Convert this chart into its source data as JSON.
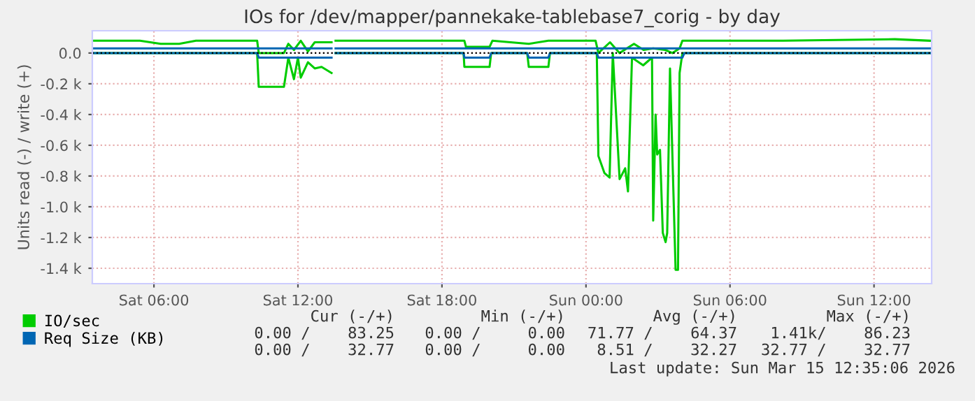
{
  "chart_data": {
    "type": "line",
    "title": "IOs for /dev/mapper/pannekake-tablebase7_corig - by day",
    "ylabel": "Units read (-) / write (+)",
    "xlim": [
      "2026-03-14T03:26",
      "2026-03-15T14:24"
    ],
    "xticks": [
      {
        "value": "2026-03-14T06:00",
        "label": "Sat 06:00"
      },
      {
        "value": "2026-03-14T12:00",
        "label": "Sat 12:00"
      },
      {
        "value": "2026-03-14T18:00",
        "label": "Sat 18:00"
      },
      {
        "value": "2026-03-15T00:00",
        "label": "Sun 00:00"
      },
      {
        "value": "2026-03-15T06:00",
        "label": "Sun 06:00"
      },
      {
        "value": "2026-03-15T12:00",
        "label": "Sun 12:00"
      }
    ],
    "ylim": [
      -1500,
      145
    ],
    "yticks": [
      {
        "value": 0,
        "label": "0.0"
      },
      {
        "value": -200,
        "label": "-0.2 k"
      },
      {
        "value": -400,
        "label": "-0.4 k"
      },
      {
        "value": -600,
        "label": "-0.6 k"
      },
      {
        "value": -800,
        "label": "-0.8 k"
      },
      {
        "value": -1000,
        "label": "-1.0 k"
      },
      {
        "value": -1200,
        "label": "-1.2 k"
      },
      {
        "value": -1400,
        "label": "-1.4 k"
      }
    ],
    "grid": true,
    "legend": "bottom left",
    "ref_lines": [
      {
        "axis": "y",
        "value": 0,
        "color": "#000000",
        "line_style": "dotted"
      }
    ],
    "series": [
      {
        "name": "IO/sec",
        "color": "#00cc00",
        "x": [
          "2026-03-14T03:26",
          "2026-03-14T05:25",
          "2026-03-14T06:17",
          "2026-03-14T07:03",
          "2026-03-14T07:45",
          "2026-03-14T10:18",
          "2026-03-14T10:22",
          "2026-03-14T11:25",
          "2026-03-14T11:36",
          "2026-03-14T11:50",
          "2026-03-14T12:07",
          "2026-03-14T12:25",
          "2026-03-14T12:42",
          "2026-03-14T13:24",
          "2026-03-14T13:27",
          "2026-03-14T13:34",
          "2026-03-14T17:04",
          "2026-03-14T18:56",
          "2026-03-14T19:00",
          "2026-03-14T19:59",
          "2026-03-14T20:06",
          "2026-03-14T21:37",
          "2026-03-14T22:26",
          "2026-03-15T00:24",
          "2026-03-15T00:31",
          "2026-03-15T01:00",
          "2026-03-15T01:24",
          "2026-03-15T02:00",
          "2026-03-15T02:24",
          "2026-03-15T02:48",
          "2026-03-15T03:18",
          "2026-03-15T03:36",
          "2026-03-15T03:54",
          "2026-03-15T04:01",
          "2026-03-15T08:13",
          "2026-03-15T12:52",
          "2026-03-15T14:20"
        ],
        "values": [
          80,
          80,
          60,
          60,
          80,
          80,
          0,
          0,
          60,
          20,
          80,
          10,
          70,
          70,
          null,
          80,
          80,
          80,
          40,
          40,
          80,
          60,
          80,
          80,
          0,
          70,
          0,
          60,
          20,
          30,
          20,
          0,
          30,
          80,
          80,
          90,
          80
        ]
      },
      {
        "color": "#00cc00",
        "x": [
          "2026-03-14T03:26",
          "2026-03-14T10:18",
          "2026-03-14T10:22",
          "2026-03-14T11:25",
          "2026-03-14T11:36",
          "2026-03-14T11:50",
          "2026-03-14T12:00",
          "2026-03-14T12:07",
          "2026-03-14T12:25",
          "2026-03-14T12:42",
          "2026-03-14T12:59",
          "2026-03-14T13:24",
          "2026-03-14T13:27",
          "2026-03-14T13:34",
          "2026-03-14T18:54",
          "2026-03-14T18:56",
          "2026-03-14T19:59",
          "2026-03-14T20:03",
          "2026-03-14T21:33",
          "2026-03-14T21:37",
          "2026-03-14T22:26",
          "2026-03-14T22:30",
          "2026-03-15T00:27",
          "2026-03-15T00:31",
          "2026-03-15T00:46",
          "2026-03-15T00:59",
          "2026-03-15T01:07",
          "2026-03-15T01:24",
          "2026-03-15T01:38",
          "2026-03-15T01:45",
          "2026-03-15T01:55",
          "2026-03-15T02:23",
          "2026-03-15T02:45",
          "2026-03-15T02:48",
          "2026-03-15T02:54",
          "2026-03-15T02:58",
          "2026-03-15T03:05",
          "2026-03-15T03:12",
          "2026-03-15T03:19",
          "2026-03-15T03:23",
          "2026-03-15T03:30",
          "2026-03-15T03:37",
          "2026-03-15T03:44",
          "2026-03-15T03:50",
          "2026-03-15T03:54",
          "2026-03-15T04:01",
          "2026-03-15T14:20"
        ],
        "values": [
          0,
          0,
          -220,
          -220,
          -30,
          -170,
          -30,
          -160,
          -60,
          -100,
          -90,
          -130,
          null,
          0,
          0,
          -90,
          -90,
          0,
          0,
          -90,
          -90,
          0,
          0,
          -670,
          -780,
          -810,
          0,
          -820,
          -750,
          -900,
          -30,
          -80,
          -30,
          -1090,
          -400,
          -660,
          -630,
          -1170,
          -1230,
          -1170,
          -100,
          -760,
          -1410,
          -1410,
          -130,
          0,
          0
        ]
      },
      {
        "name": "Req Size (KB)",
        "color": "#0066b3",
        "x": [
          "2026-03-14T03:26",
          "2026-03-14T13:24",
          "2026-03-14T13:27",
          "2026-03-14T13:34",
          "2026-03-15T14:20"
        ],
        "values": [
          30,
          30,
          null,
          30,
          30
        ]
      },
      {
        "color": "#0066b3",
        "x": [
          "2026-03-14T03:26",
          "2026-03-14T10:18",
          "2026-03-14T10:22",
          "2026-03-14T13:24",
          "2026-03-14T13:27",
          "2026-03-14T13:34",
          "2026-03-14T18:54",
          "2026-03-14T18:56",
          "2026-03-14T19:59",
          "2026-03-14T20:03",
          "2026-03-14T21:33",
          "2026-03-14T21:37",
          "2026-03-14T22:26",
          "2026-03-14T22:30",
          "2026-03-15T00:27",
          "2026-03-15T00:31",
          "2026-03-15T04:01",
          "2026-03-15T04:06",
          "2026-03-15T14:20"
        ],
        "values": [
          0,
          0,
          -30,
          -30,
          null,
          0,
          0,
          -30,
          -30,
          0,
          0,
          -30,
          -30,
          0,
          0,
          -30,
          -30,
          0,
          0
        ]
      }
    ],
    "annotations": [
      "Cur (-/+)",
      "Min (-/+)",
      "Avg (-/+)",
      "Max (-/+)",
      "0.00 /    83.25",
      "0.00 /     0.00",
      "71.77 /    64.37",
      "1.41k/    86.23",
      "0.00 /    32.77",
      "0.00 /     0.00",
      "8.51 /    32.27",
      "32.77 /    32.77",
      "Last update: Sun Mar 15 12:35:06 2026"
    ]
  }
}
